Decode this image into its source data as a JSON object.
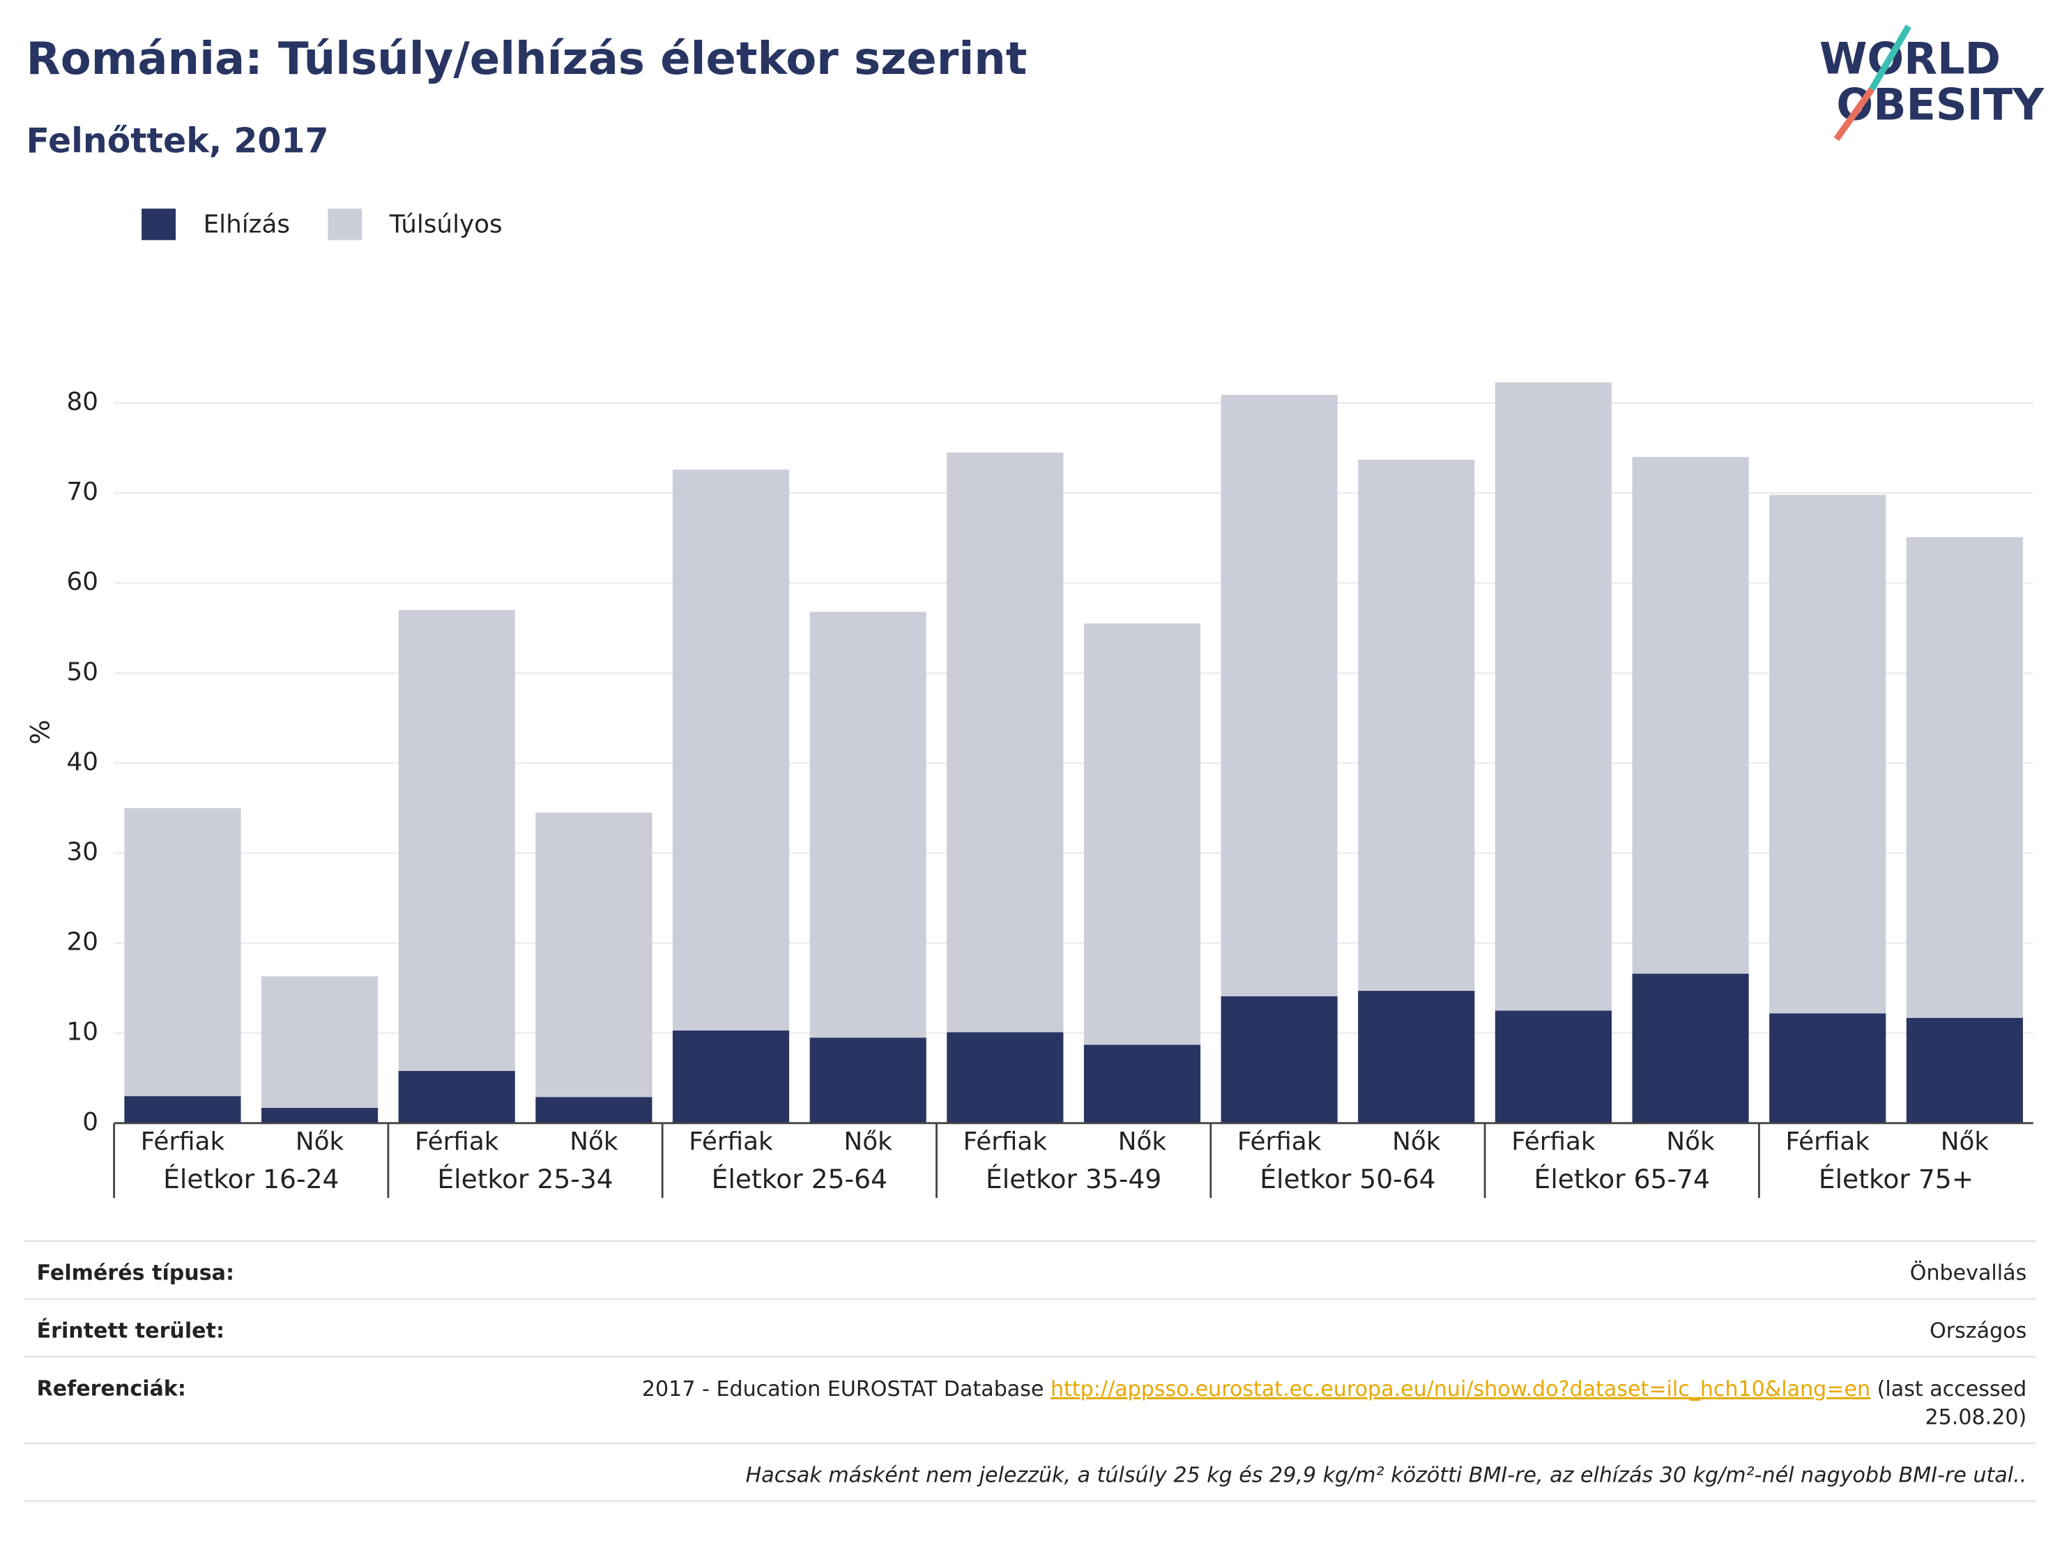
{
  "chart_data": {
    "type": "stacked_bar",
    "title": "Románia: Túlsúly/elhízás életkor szerint",
    "subtitle": "Felnőttek, 2017",
    "y_label": "%",
    "categories": [
      "Férfiak",
      "Nők",
      "Férfiak",
      "Nők",
      "Férfiak",
      "Nők",
      "Férfiak",
      "Nők",
      "Férfiak",
      "Nők",
      "Férfiak",
      "Nők",
      "Férfiak",
      "Nők"
    ],
    "groups": [
      "Életkor 16-24",
      "Életkor 25-34",
      "Életkor 25-64",
      "Életkor 35-49",
      "Életkor 50-64",
      "Életkor 65-74",
      "Életkor 75+"
    ],
    "series": [
      {
        "name": "Elhízás",
        "color": "#283562",
        "values": [
          3.0,
          1.7,
          5.8,
          2.9,
          10.3,
          9.5,
          10.1,
          8.7,
          14.1,
          14.7,
          12.5,
          16.6,
          12.2,
          11.7
        ]
      },
      {
        "name": "Túlsúlyos",
        "color": "#cbcdd9",
        "values": [
          32.0,
          14.6,
          51.2,
          31.6,
          62.3,
          47.3,
          64.4,
          46.8,
          66.8,
          59.0,
          69.8,
          57.4,
          57.6,
          53.4
        ]
      }
    ],
    "ylim": [
      0,
      82.5
    ],
    "yticks": [
      0,
      10,
      20,
      30,
      40,
      50,
      60,
      70,
      80
    ],
    "grid": true,
    "legend": "top-left"
  },
  "logo": [
    "WORLD",
    "OBESITY"
  ],
  "footer": {
    "rows": [
      {
        "label": "Felmérés típusa:",
        "value": "Önbevallás"
      },
      {
        "label": "Érintett terület:",
        "value": "Országos"
      }
    ],
    "reference": {
      "label": "Referenciák:",
      "text": "2017 - Education EUROSTAT Database",
      "link": "http://appsso.eurostat.ec.europa.eu/nui/show.do?dataset=ilc_hch10&lang=en",
      "suffix": [
        "(last accessed",
        "25.08.20)"
      ]
    },
    "note": "Hacsak másként nem jelezzük, a túlsúly 25 kg és 29,9 kg/m² közötti BMI-re, az elhízás 30 kg/m²-nél nagyobb BMI-re utal.."
  }
}
